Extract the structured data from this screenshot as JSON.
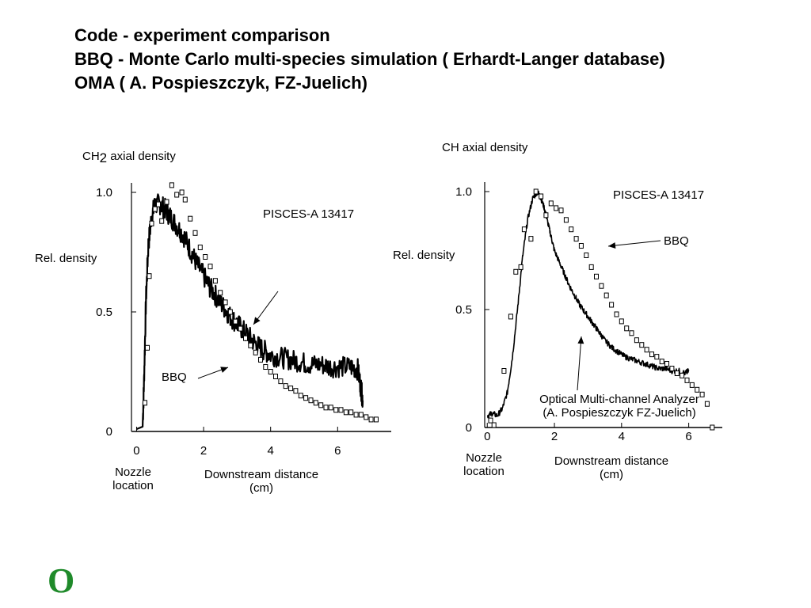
{
  "page": {
    "title_lines": [
      "Code - experiment  comparison",
      "BBQ - Monte  Carlo  multi-species  simulation ( Erhardt-Langer database)",
      "OMA ( A. Pospieszczyk, FZ-Juelich)"
    ],
    "logo_glyph": "O",
    "logo_color": "#1f8a2a"
  },
  "chart_data": [
    {
      "type": "scatter",
      "title_main": "CH",
      "title_sub": "2",
      "title_rest": " axial density",
      "ylabel": "Rel. density",
      "xlabel": "Downstream distance",
      "xlabel_unit": "(cm)",
      "nozzle_label_1": "Nozzle",
      "nozzle_label_2": "location",
      "shot_label": "PISCES-A 13417",
      "bbq_label": "BBQ",
      "xlim": [
        -0.2,
        7.6
      ],
      "ylim": [
        0,
        1.0
      ],
      "xticks": [
        0,
        2,
        4,
        6
      ],
      "xtick_labels": [
        "0",
        "2",
        "4",
        "6"
      ],
      "yticks": [
        0,
        0.5,
        1.0
      ],
      "ytick_labels": [
        "0",
        "0.5",
        "1.0"
      ],
      "series": [
        {
          "name": "BBQ",
          "style": "open-square",
          "x": [
            0.25,
            0.32,
            0.38,
            0.45,
            0.55,
            0.65,
            0.75,
            0.9,
            1.05,
            1.2,
            1.35,
            1.45,
            1.6,
            1.75,
            1.9,
            2.05,
            2.2,
            2.35,
            2.5,
            2.65,
            2.8,
            2.95,
            3.1,
            3.25,
            3.4,
            3.55,
            3.7,
            3.85,
            4.0,
            4.15,
            4.3,
            4.45,
            4.6,
            4.75,
            4.9,
            5.05,
            5.2,
            5.35,
            5.5,
            5.65,
            5.8,
            5.95,
            6.1,
            6.25,
            6.4,
            6.55,
            6.7,
            6.85,
            7.0,
            7.15
          ],
          "y": [
            0.12,
            0.35,
            0.65,
            0.87,
            0.93,
            0.95,
            0.88,
            0.96,
            1.03,
            0.99,
            1.0,
            0.97,
            0.89,
            0.83,
            0.77,
            0.73,
            0.69,
            0.63,
            0.58,
            0.54,
            0.5,
            0.46,
            0.43,
            0.39,
            0.36,
            0.33,
            0.3,
            0.27,
            0.25,
            0.23,
            0.21,
            0.19,
            0.18,
            0.17,
            0.15,
            0.14,
            0.13,
            0.12,
            0.11,
            0.1,
            0.1,
            0.09,
            0.09,
            0.08,
            0.08,
            0.07,
            0.07,
            0.06,
            0.05,
            0.05
          ]
        },
        {
          "name": "",
          "style": "noisy-line",
          "x": [
            0.0,
            0.18,
            0.22,
            0.28,
            0.35,
            0.45,
            0.55,
            0.7,
            0.85,
            1.0,
            1.2,
            1.4,
            1.6,
            1.8,
            2.0,
            2.2,
            2.4,
            2.6,
            2.8,
            3.0,
            3.2,
            3.4,
            3.6,
            3.8,
            4.0,
            4.3,
            4.6,
            4.9,
            5.2,
            5.5,
            5.8,
            6.1,
            6.4,
            6.6,
            6.7,
            6.75
          ],
          "y": [
            0.01,
            0.02,
            0.2,
            0.55,
            0.78,
            0.9,
            0.95,
            0.95,
            0.93,
            0.9,
            0.86,
            0.82,
            0.76,
            0.7,
            0.65,
            0.6,
            0.56,
            0.52,
            0.48,
            0.45,
            0.42,
            0.39,
            0.36,
            0.34,
            0.32,
            0.31,
            0.3,
            0.29,
            0.28,
            0.28,
            0.27,
            0.27,
            0.27,
            0.26,
            0.18,
            0.13
          ]
        }
      ]
    },
    {
      "type": "scatter",
      "title": "CH axial density",
      "ylabel": "Rel. density",
      "xlabel": "Downstream distance",
      "xlabel_unit": "(cm)",
      "nozzle_label_1": "Nozzle",
      "nozzle_label_2": "location",
      "shot_label": "PISCES-A 13417",
      "bbq_label": "BBQ",
      "oma_label_1": "Optical Multi-channel Analyzer",
      "oma_label_2": "(A. Pospieszczyk   FZ-Juelich)",
      "xlim": [
        -0.1,
        7.0
      ],
      "ylim": [
        0,
        1.0
      ],
      "xticks": [
        0,
        2,
        4,
        6
      ],
      "xtick_labels": [
        "0",
        "2",
        "4",
        "6"
      ],
      "yticks": [
        0,
        0.5,
        1.0
      ],
      "ytick_labels": [
        "0",
        "0.5",
        "1.0"
      ],
      "series": [
        {
          "name": "BBQ",
          "style": "open-square",
          "x": [
            0.1,
            0.2,
            0.5,
            0.7,
            0.85,
            1.0,
            1.1,
            1.3,
            1.45,
            1.6,
            1.75,
            1.9,
            2.05,
            2.2,
            2.35,
            2.5,
            2.65,
            2.8,
            2.95,
            3.1,
            3.25,
            3.4,
            3.55,
            3.7,
            3.85,
            4.0,
            4.15,
            4.3,
            4.45,
            4.6,
            4.75,
            4.9,
            5.05,
            5.2,
            5.35,
            5.5,
            5.65,
            5.8,
            5.95,
            6.1,
            6.25,
            6.4,
            6.55,
            6.7
          ],
          "y": [
            0.03,
            0.01,
            0.24,
            0.47,
            0.66,
            0.68,
            0.84,
            0.8,
            1.0,
            0.98,
            0.9,
            0.95,
            0.93,
            0.92,
            0.88,
            0.84,
            0.8,
            0.77,
            0.73,
            0.68,
            0.64,
            0.6,
            0.56,
            0.52,
            0.48,
            0.45,
            0.42,
            0.4,
            0.37,
            0.35,
            0.33,
            0.31,
            0.3,
            0.28,
            0.27,
            0.25,
            0.23,
            0.22,
            0.2,
            0.18,
            0.16,
            0.14,
            0.1,
            0.0
          ]
        },
        {
          "name": "",
          "style": "noisy-line",
          "x": [
            0.0,
            0.15,
            0.3,
            0.45,
            0.6,
            0.75,
            0.9,
            1.05,
            1.2,
            1.35,
            1.5,
            1.6,
            1.7,
            1.8,
            1.9,
            2.0,
            2.15,
            2.3,
            2.45,
            2.6,
            2.75,
            2.9,
            3.05,
            3.2,
            3.35,
            3.5,
            3.7,
            3.9,
            4.1,
            4.3,
            4.5,
            4.7,
            4.9,
            5.1,
            5.3,
            5.5,
            5.7,
            5.9,
            6.0
          ],
          "y": [
            0.05,
            0.06,
            0.05,
            0.08,
            0.15,
            0.3,
            0.5,
            0.72,
            0.88,
            0.97,
            1.0,
            0.97,
            0.93,
            0.87,
            0.81,
            0.75,
            0.7,
            0.65,
            0.6,
            0.56,
            0.52,
            0.49,
            0.46,
            0.43,
            0.4,
            0.37,
            0.34,
            0.32,
            0.3,
            0.29,
            0.28,
            0.27,
            0.26,
            0.25,
            0.25,
            0.24,
            0.24,
            0.23,
            0.24
          ]
        }
      ]
    }
  ]
}
